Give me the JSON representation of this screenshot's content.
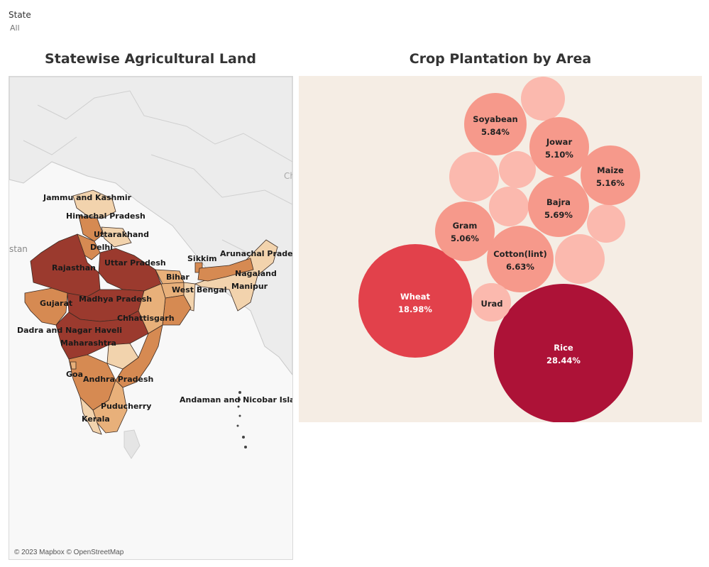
{
  "filter": {
    "label": "State",
    "value": "All"
  },
  "map": {
    "title": "Statewise Agricultural Land",
    "copyright": "© 2023 Mapbox © OpenStreetMap",
    "neighbors": [
      "stan",
      "Ch"
    ],
    "state_labels": [
      "Jammu and Kashmir",
      "Himachal Pradesh",
      "Uttarakhand",
      "Delhi",
      "Rajasthan",
      "Uttar Pradesh",
      "Sikkim",
      "Arunachal Pradesh",
      "Bihar",
      "Nagaland",
      "West Bengal",
      "Manipur",
      "Gujarat",
      "Madhya Pradesh",
      "Chhattisgarh",
      "Dadra and Nagar Haveli",
      "Maharashtra",
      "Goa",
      "Andhra Pradesh",
      "Andaman and Nicobar Island",
      "Puducherry",
      "Kerala"
    ],
    "colors": {
      "dark": "#9b3a2e",
      "mid": "#d68a52",
      "light": "#e8b07a",
      "pale": "#f2d3ad",
      "land": "#e9e9e9",
      "water": "#f8f8f8"
    }
  },
  "bubble": {
    "title": "Crop Plantation by Area",
    "labeled": [
      {
        "name": "Rice",
        "value": "28.44%"
      },
      {
        "name": "Wheat",
        "value": "18.98%"
      },
      {
        "name": "Cotton(lint)",
        "value": "6.63%"
      },
      {
        "name": "Soyabean",
        "value": "5.84%"
      },
      {
        "name": "Bajra",
        "value": "5.69%"
      },
      {
        "name": "Maize",
        "value": "5.16%"
      },
      {
        "name": "Jowar",
        "value": "5.10%"
      },
      {
        "name": "Gram",
        "value": "5.06%"
      },
      {
        "name": "Urad",
        "value": ""
      }
    ],
    "unlabeled_count": 7,
    "colors": {
      "rice": "#ad1237",
      "wheat": "#e2414b",
      "mid": "#f6998b",
      "light": "#fbb9ae"
    }
  }
}
